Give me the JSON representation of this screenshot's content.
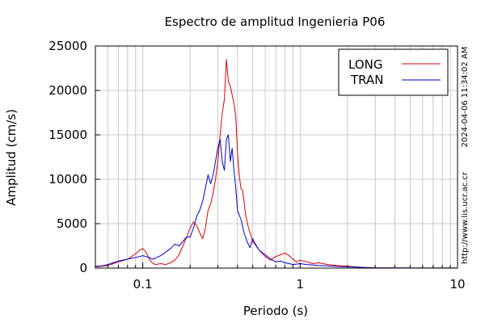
{
  "chart_data": {
    "type": "line",
    "title": "Espectro de amplitud Ingenieria P06",
    "xlabel": "Periodo (s)",
    "ylabel": "Amplitud (cm/s)",
    "x_scale": "log",
    "xlim": [
      0.05,
      10
    ],
    "ylim": [
      0,
      25000
    ],
    "grid": true,
    "legend_position": "top-right",
    "x_ticks": [
      {
        "value": 0.1,
        "label": "0.1"
      },
      {
        "value": 1,
        "label": "1"
      },
      {
        "value": 10,
        "label": "10"
      }
    ],
    "y_ticks": [
      {
        "value": 0,
        "label": "0"
      },
      {
        "value": 5000,
        "label": "5000"
      },
      {
        "value": 10000,
        "label": "10000"
      },
      {
        "value": 15000,
        "label": "15000"
      },
      {
        "value": 20000,
        "label": "20000"
      },
      {
        "value": 25000,
        "label": "25000"
      }
    ],
    "timestamp": "2024-04-06 11:34:02 AM",
    "source_url": "http://www.lis.ucr.ac.cr",
    "series": [
      {
        "name": "LONG",
        "color": "#dd0000",
        "points": [
          [
            0.05,
            150
          ],
          [
            0.055,
            200
          ],
          [
            0.06,
            300
          ],
          [
            0.065,
            500
          ],
          [
            0.07,
            700
          ],
          [
            0.075,
            850
          ],
          [
            0.08,
            1000
          ],
          [
            0.085,
            1300
          ],
          [
            0.09,
            1600
          ],
          [
            0.095,
            2000
          ],
          [
            0.1,
            2200
          ],
          [
            0.105,
            1800
          ],
          [
            0.11,
            1000
          ],
          [
            0.115,
            600
          ],
          [
            0.12,
            400
          ],
          [
            0.13,
            500
          ],
          [
            0.14,
            400
          ],
          [
            0.15,
            600
          ],
          [
            0.16,
            900
          ],
          [
            0.17,
            1500
          ],
          [
            0.18,
            2500
          ],
          [
            0.19,
            3500
          ],
          [
            0.2,
            4500
          ],
          [
            0.21,
            5200
          ],
          [
            0.22,
            4800
          ],
          [
            0.23,
            4000
          ],
          [
            0.24,
            3300
          ],
          [
            0.25,
            4500
          ],
          [
            0.26,
            6500
          ],
          [
            0.27,
            7200
          ],
          [
            0.28,
            8500
          ],
          [
            0.29,
            10000
          ],
          [
            0.3,
            12000
          ],
          [
            0.31,
            15000
          ],
          [
            0.32,
            17500
          ],
          [
            0.33,
            19000
          ],
          [
            0.34,
            23500
          ],
          [
            0.35,
            21000
          ],
          [
            0.36,
            20500
          ],
          [
            0.37,
            19500
          ],
          [
            0.38,
            18500
          ],
          [
            0.39,
            17000
          ],
          [
            0.4,
            13000
          ],
          [
            0.41,
            10500
          ],
          [
            0.42,
            9000
          ],
          [
            0.43,
            8800
          ],
          [
            0.44,
            7500
          ],
          [
            0.45,
            6000
          ],
          [
            0.47,
            4500
          ],
          [
            0.5,
            3000
          ],
          [
            0.55,
            2000
          ],
          [
            0.6,
            1300
          ],
          [
            0.65,
            900
          ],
          [
            0.7,
            1300
          ],
          [
            0.75,
            1500
          ],
          [
            0.8,
            1700
          ],
          [
            0.85,
            1400
          ],
          [
            0.9,
            1000
          ],
          [
            0.95,
            700
          ],
          [
            1.0,
            900
          ],
          [
            1.1,
            700
          ],
          [
            1.2,
            500
          ],
          [
            1.3,
            600
          ],
          [
            1.4,
            500
          ],
          [
            1.5,
            400
          ],
          [
            1.7,
            300
          ],
          [
            2.0,
            200
          ],
          [
            2.5,
            80
          ],
          [
            3.0,
            40
          ],
          [
            4.0,
            20
          ],
          [
            6.0,
            10
          ],
          [
            10.0,
            5
          ]
        ]
      },
      {
        "name": "TRAN",
        "color": "#0000cc",
        "points": [
          [
            0.05,
            200
          ],
          [
            0.055,
            250
          ],
          [
            0.06,
            400
          ],
          [
            0.065,
            600
          ],
          [
            0.07,
            800
          ],
          [
            0.075,
            900
          ],
          [
            0.08,
            1000
          ],
          [
            0.085,
            1100
          ],
          [
            0.09,
            1200
          ],
          [
            0.095,
            1300
          ],
          [
            0.1,
            1400
          ],
          [
            0.105,
            1300
          ],
          [
            0.11,
            1200
          ],
          [
            0.115,
            1000
          ],
          [
            0.12,
            1100
          ],
          [
            0.13,
            1400
          ],
          [
            0.14,
            1800
          ],
          [
            0.15,
            2200
          ],
          [
            0.16,
            2700
          ],
          [
            0.17,
            2500
          ],
          [
            0.18,
            3000
          ],
          [
            0.19,
            3500
          ],
          [
            0.2,
            3500
          ],
          [
            0.21,
            4500
          ],
          [
            0.22,
            5800
          ],
          [
            0.23,
            6500
          ],
          [
            0.24,
            7500
          ],
          [
            0.25,
            9000
          ],
          [
            0.26,
            10500
          ],
          [
            0.27,
            9500
          ],
          [
            0.28,
            10500
          ],
          [
            0.29,
            12000
          ],
          [
            0.3,
            13500
          ],
          [
            0.31,
            14500
          ],
          [
            0.32,
            12000
          ],
          [
            0.33,
            11000
          ],
          [
            0.34,
            14500
          ],
          [
            0.35,
            15000
          ],
          [
            0.36,
            12000
          ],
          [
            0.37,
            13500
          ],
          [
            0.38,
            11000
          ],
          [
            0.39,
            9000
          ],
          [
            0.4,
            6500
          ],
          [
            0.42,
            5500
          ],
          [
            0.44,
            4000
          ],
          [
            0.46,
            3000
          ],
          [
            0.48,
            2300
          ],
          [
            0.5,
            3300
          ],
          [
            0.52,
            2700
          ],
          [
            0.55,
            2000
          ],
          [
            0.6,
            1500
          ],
          [
            0.65,
            1000
          ],
          [
            0.7,
            700
          ],
          [
            0.75,
            800
          ],
          [
            0.8,
            600
          ],
          [
            0.85,
            500
          ],
          [
            0.9,
            400
          ],
          [
            1.0,
            500
          ],
          [
            1.1,
            400
          ],
          [
            1.2,
            350
          ],
          [
            1.3,
            300
          ],
          [
            1.5,
            250
          ],
          [
            1.7,
            180
          ],
          [
            2.0,
            150
          ],
          [
            2.5,
            60
          ],
          [
            3.0,
            30
          ],
          [
            4.0,
            15
          ],
          [
            6.0,
            8
          ],
          [
            10.0,
            5
          ]
        ]
      }
    ]
  }
}
